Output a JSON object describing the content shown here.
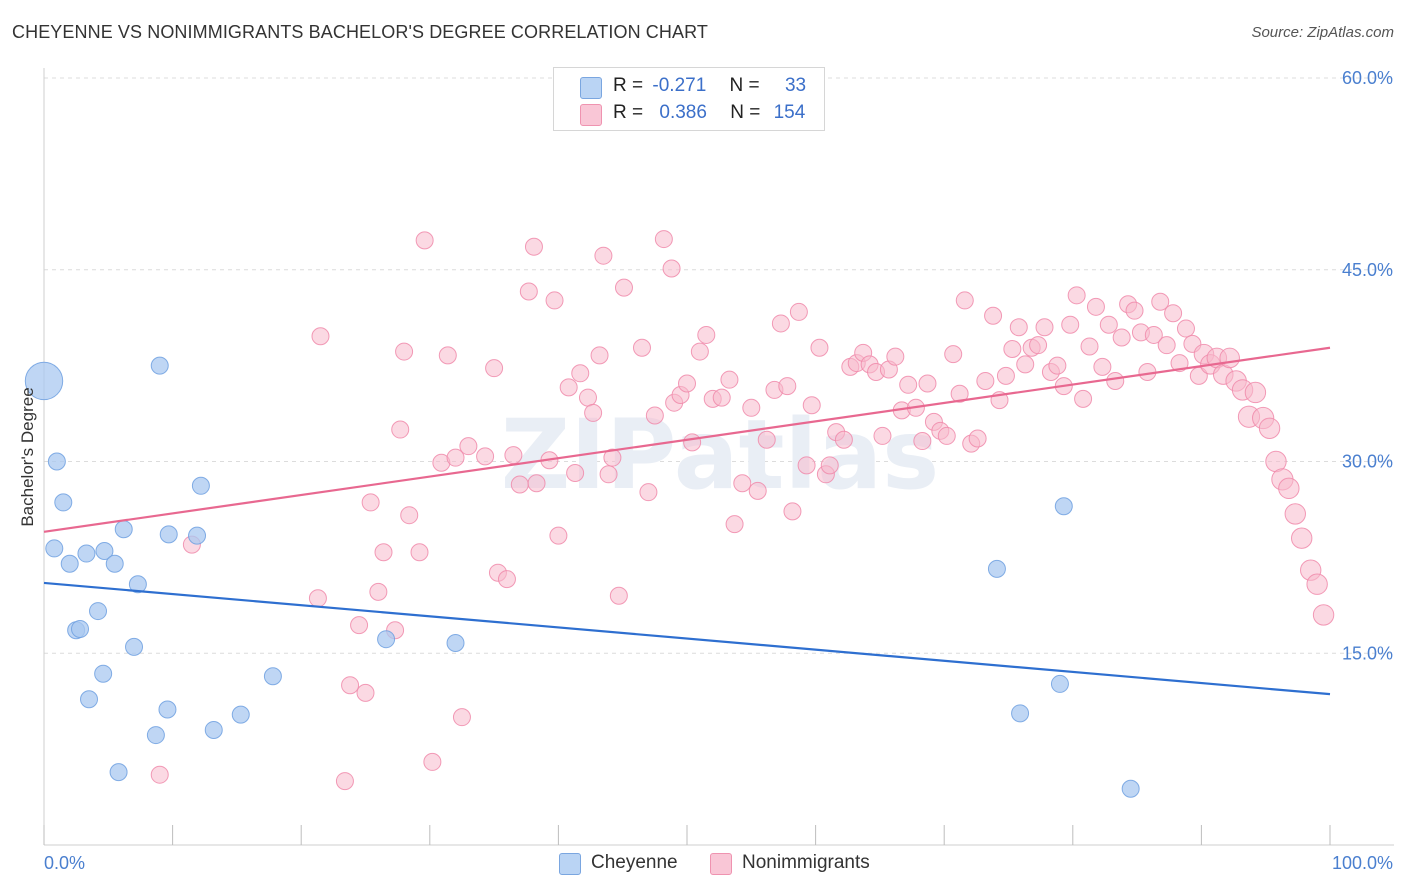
{
  "header": {
    "title": "CHEYENNE VS NONIMMIGRANTS BACHELOR'S DEGREE CORRELATION CHART",
    "source": "Source: ZipAtlas.com"
  },
  "watermark": "ZIPatlas",
  "legend": {
    "rows": [
      {
        "r_label": "R =",
        "r_value": "-0.271",
        "n_label": "N =",
        "n_value": "33",
        "color": "#a9c8f0"
      },
      {
        "r_label": "R =",
        "r_value": "0.386",
        "n_label": "N =",
        "n_value": "154",
        "color": "#f7b9cc"
      }
    ]
  },
  "bottom_legend": {
    "items": [
      {
        "label": "Cheyenne",
        "color": "#a9c8f0"
      },
      {
        "label": "Nonimmigrants",
        "color": "#f7b9cc"
      }
    ]
  },
  "chart_data": {
    "type": "scatter",
    "title": "CHEYENNE VS NONIMMIGRANTS BACHELOR'S DEGREE CORRELATION CHART",
    "xlabel": "",
    "ylabel": "Bachelor's Degree",
    "xlim": [
      0,
      100
    ],
    "ylim": [
      0,
      60
    ],
    "x_tick_labels": [
      "0.0%",
      "100.0%"
    ],
    "y_tick_labels": [
      "15.0%",
      "30.0%",
      "45.0%",
      "60.0%"
    ],
    "y_ticks": [
      15,
      30,
      45,
      60
    ],
    "grid": true,
    "legend_position": "top-center",
    "series": [
      {
        "name": "Cheyenne",
        "color": "#6fa0e0",
        "fill": "#a9c8f0",
        "trend": {
          "x": [
            0,
            100
          ],
          "y": [
            20.5,
            11.8
          ],
          "color": "#2e6fd0"
        },
        "points": [
          [
            0,
            36.3,
            2.2
          ],
          [
            1,
            30.0,
            1
          ],
          [
            1.5,
            26.8,
            1
          ],
          [
            0.8,
            23.2,
            1
          ],
          [
            2,
            22.0,
            1
          ],
          [
            3.3,
            22.8,
            1
          ],
          [
            4.7,
            23.0,
            1
          ],
          [
            5.5,
            22.0,
            1
          ],
          [
            6.2,
            24.7,
            1
          ],
          [
            7.3,
            20.4,
            1
          ],
          [
            4.2,
            18.3,
            1
          ],
          [
            2.5,
            16.8,
            1
          ],
          [
            2.8,
            16.9,
            1
          ],
          [
            7,
            15.5,
            1
          ],
          [
            4.6,
            13.4,
            1
          ],
          [
            3.5,
            11.4,
            1
          ],
          [
            9.6,
            10.6,
            1
          ],
          [
            8.7,
            8.6,
            1
          ],
          [
            5.8,
            5.7,
            1
          ],
          [
            9,
            37.5,
            1
          ],
          [
            12.2,
            28.1,
            1
          ],
          [
            9.7,
            24.3,
            1
          ],
          [
            11.9,
            24.2,
            1
          ],
          [
            13.2,
            9.0,
            1
          ],
          [
            15.3,
            10.2,
            1
          ],
          [
            17.8,
            13.2,
            1
          ],
          [
            26.6,
            16.1,
            1
          ],
          [
            32,
            15.8,
            1
          ],
          [
            79,
            12.6,
            1
          ],
          [
            74.1,
            21.6,
            1
          ],
          [
            75.9,
            10.3,
            1
          ],
          [
            79.3,
            26.5,
            1
          ],
          [
            84.5,
            4.4,
            1
          ]
        ]
      },
      {
        "name": "Nonimmigrants",
        "color": "#f08aaa",
        "fill": "#f7b9cc",
        "trend": {
          "x": [
            0,
            100
          ],
          "y": [
            24.5,
            38.9
          ],
          "color": "#e86890"
        },
        "points": [
          [
            9,
            5.5,
            1
          ],
          [
            11.5,
            23.5,
            1
          ],
          [
            21.5,
            39.8,
            1
          ],
          [
            23.8,
            12.5,
            1
          ],
          [
            21.3,
            19.3,
            1
          ],
          [
            23.4,
            5.0,
            1
          ],
          [
            24.5,
            17.2,
            1
          ],
          [
            25,
            11.9,
            1
          ],
          [
            25.4,
            26.8,
            1
          ],
          [
            26,
            19.8,
            1
          ],
          [
            26.4,
            22.9,
            1
          ],
          [
            27.3,
            16.8,
            1
          ],
          [
            27.7,
            32.5,
            1
          ],
          [
            28,
            38.6,
            1
          ],
          [
            28.4,
            25.8,
            1
          ],
          [
            29.2,
            22.9,
            1
          ],
          [
            29.6,
            47.3,
            1
          ],
          [
            30.2,
            6.5,
            1
          ],
          [
            30.9,
            29.9,
            1
          ],
          [
            31.4,
            38.3,
            1
          ],
          [
            32,
            30.3,
            1
          ],
          [
            32.5,
            10.0,
            1
          ],
          [
            33,
            31.2,
            1
          ],
          [
            34.3,
            30.4,
            1
          ],
          [
            35,
            37.3,
            1
          ],
          [
            35.3,
            21.3,
            1
          ],
          [
            36,
            20.8,
            1
          ],
          [
            36.5,
            30.5,
            1
          ],
          [
            37,
            28.2,
            1
          ],
          [
            37.7,
            43.3,
            1
          ],
          [
            38.1,
            46.8,
            1
          ],
          [
            38.3,
            28.3,
            1
          ],
          [
            39.3,
            30.1,
            1
          ],
          [
            39.7,
            42.6,
            1
          ],
          [
            40,
            24.2,
            1
          ],
          [
            40.8,
            35.8,
            1
          ],
          [
            41.3,
            29.1,
            1
          ],
          [
            41.7,
            36.9,
            1
          ],
          [
            42.3,
            35.0,
            1
          ],
          [
            42.7,
            33.8,
            1
          ],
          [
            43.2,
            38.3,
            1
          ],
          [
            43.5,
            46.1,
            1
          ],
          [
            43.9,
            29.0,
            1
          ],
          [
            44.2,
            30.3,
            1
          ],
          [
            44.7,
            19.5,
            1
          ],
          [
            45.1,
            43.6,
            1
          ],
          [
            46.5,
            38.9,
            1
          ],
          [
            47,
            27.6,
            1
          ],
          [
            47.5,
            33.6,
            1
          ],
          [
            48.2,
            47.4,
            1
          ],
          [
            48.8,
            45.1,
            1
          ],
          [
            49,
            34.6,
            1
          ],
          [
            49.5,
            35.2,
            1
          ],
          [
            50,
            36.1,
            1
          ],
          [
            50.4,
            31.5,
            1
          ],
          [
            51,
            38.6,
            1
          ],
          [
            51.5,
            39.9,
            1
          ],
          [
            52,
            34.9,
            1
          ],
          [
            52.7,
            35.0,
            1
          ],
          [
            53.3,
            36.4,
            1
          ],
          [
            53.7,
            25.1,
            1
          ],
          [
            54.3,
            28.3,
            1
          ],
          [
            55,
            34.2,
            1
          ],
          [
            55.5,
            27.7,
            1
          ],
          [
            56.2,
            31.7,
            1
          ],
          [
            56.8,
            35.6,
            1
          ],
          [
            57.3,
            40.8,
            1
          ],
          [
            57.8,
            35.9,
            1
          ],
          [
            58.2,
            26.1,
            1
          ],
          [
            58.7,
            41.7,
            1
          ],
          [
            59.3,
            29.7,
            1
          ],
          [
            59.7,
            34.4,
            1
          ],
          [
            60.3,
            38.9,
            1
          ],
          [
            60.8,
            29.0,
            1
          ],
          [
            61.1,
            29.7,
            1
          ],
          [
            61.6,
            32.3,
            1
          ],
          [
            62.2,
            31.7,
            1
          ],
          [
            62.7,
            37.4,
            1
          ],
          [
            63.2,
            37.7,
            1
          ],
          [
            63.7,
            38.5,
            1
          ],
          [
            64.2,
            37.6,
            1
          ],
          [
            64.7,
            37.0,
            1
          ],
          [
            65.2,
            32.0,
            1
          ],
          [
            65.7,
            37.2,
            1
          ],
          [
            66.2,
            38.2,
            1
          ],
          [
            66.7,
            34.0,
            1
          ],
          [
            67.2,
            36.0,
            1
          ],
          [
            67.8,
            34.2,
            1
          ],
          [
            68.3,
            31.6,
            1
          ],
          [
            68.7,
            36.1,
            1
          ],
          [
            69.2,
            33.1,
            1
          ],
          [
            69.7,
            32.4,
            1
          ],
          [
            70.2,
            32.0,
            1
          ],
          [
            70.7,
            38.4,
            1
          ],
          [
            71.2,
            35.3,
            1
          ],
          [
            71.6,
            42.6,
            1
          ],
          [
            72.1,
            31.4,
            1
          ],
          [
            72.6,
            31.8,
            1
          ],
          [
            73.2,
            36.3,
            1
          ],
          [
            73.8,
            41.4,
            1
          ],
          [
            74.3,
            34.8,
            1
          ],
          [
            74.8,
            36.7,
            1
          ],
          [
            75.3,
            38.8,
            1
          ],
          [
            75.8,
            40.5,
            1
          ],
          [
            76.3,
            37.6,
            1
          ],
          [
            76.8,
            38.9,
            1
          ],
          [
            77.3,
            39.1,
            1
          ],
          [
            77.8,
            40.5,
            1
          ],
          [
            78.3,
            37.0,
            1
          ],
          [
            78.8,
            37.5,
            1
          ],
          [
            79.3,
            35.9,
            1
          ],
          [
            79.8,
            40.7,
            1
          ],
          [
            80.3,
            43.0,
            1
          ],
          [
            80.8,
            34.9,
            1
          ],
          [
            81.3,
            39.0,
            1
          ],
          [
            81.8,
            42.1,
            1
          ],
          [
            82.3,
            37.4,
            1
          ],
          [
            82.8,
            40.7,
            1
          ],
          [
            83.3,
            36.3,
            1
          ],
          [
            83.8,
            39.7,
            1
          ],
          [
            84.3,
            42.3,
            1
          ],
          [
            84.8,
            41.8,
            1
          ],
          [
            85.3,
            40.1,
            1
          ],
          [
            85.8,
            37.0,
            1
          ],
          [
            86.3,
            39.9,
            1
          ],
          [
            86.8,
            42.5,
            1
          ],
          [
            87.3,
            39.1,
            1
          ],
          [
            87.8,
            41.6,
            1
          ],
          [
            88.3,
            37.7,
            1
          ],
          [
            88.8,
            40.4,
            1
          ],
          [
            89.3,
            39.2,
            1
          ],
          [
            89.8,
            36.7,
            1
          ],
          [
            90.2,
            38.4,
            1.15
          ],
          [
            90.7,
            37.6,
            1.15
          ],
          [
            91.2,
            38.1,
            1.15
          ],
          [
            91.7,
            36.8,
            1.15
          ],
          [
            92.2,
            38.1,
            1.15
          ],
          [
            92.7,
            36.3,
            1.2
          ],
          [
            93.2,
            35.6,
            1.2
          ],
          [
            93.7,
            33.5,
            1.25
          ],
          [
            94.2,
            35.4,
            1.2
          ],
          [
            94.8,
            33.4,
            1.25
          ],
          [
            95.3,
            32.6,
            1.2
          ],
          [
            95.8,
            30.0,
            1.2
          ],
          [
            96.3,
            28.6,
            1.25
          ],
          [
            96.8,
            27.9,
            1.2
          ],
          [
            97.3,
            25.9,
            1.2
          ],
          [
            97.8,
            24.0,
            1.2
          ],
          [
            98.5,
            21.5,
            1.2
          ],
          [
            99,
            20.4,
            1.2
          ],
          [
            99.5,
            18.0,
            1.2
          ]
        ]
      }
    ]
  }
}
